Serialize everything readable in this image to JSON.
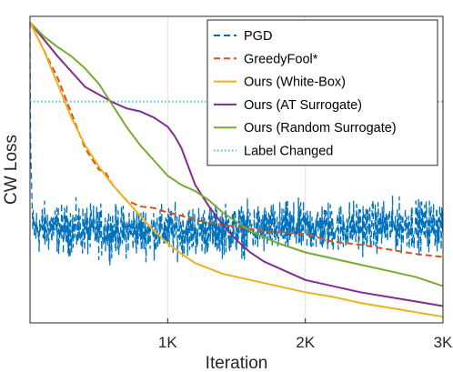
{
  "chart_data": {
    "type": "line",
    "title": "",
    "xlabel": "Iteration",
    "ylabel": "CW Loss",
    "xlim": [
      0,
      3000
    ],
    "ylim": [
      0,
      1
    ],
    "x_ticks": [
      {
        "value": 1000,
        "label": "1K"
      },
      {
        "value": 2000,
        "label": "2K"
      },
      {
        "value": 3000,
        "label": "3K"
      }
    ],
    "y_tick_labels_shown": false,
    "grid": "vertical",
    "legend_position": "top-right",
    "label_changed_level": 0.722,
    "series": [
      {
        "name": "PGD",
        "color": "#0072BD",
        "style": "dashed",
        "noisy": true,
        "noise_amplitude": 0.065,
        "x": [
          0,
          3,
          20,
          100,
          500,
          1000,
          2000,
          3000
        ],
        "y": [
          0.98,
          0.6,
          0.3,
          0.31,
          0.3,
          0.3,
          0.31,
          0.32
        ]
      },
      {
        "name": "GreedyFool*",
        "color": "#D95319",
        "style": "dashed",
        "x": [
          0,
          200,
          400,
          500,
          550,
          600,
          700,
          800,
          900,
          1000,
          1100,
          1200,
          1400,
          1700,
          2000,
          2200,
          2400,
          2600,
          2800,
          3000
        ],
        "y": [
          0.98,
          0.8,
          0.57,
          0.5,
          0.49,
          0.45,
          0.4,
          0.38,
          0.375,
          0.36,
          0.35,
          0.335,
          0.32,
          0.3,
          0.29,
          0.265,
          0.255,
          0.24,
          0.225,
          0.215
        ]
      },
      {
        "name": "Ours (White-Box)",
        "color": "#EDB120",
        "style": "solid",
        "x": [
          0,
          100,
          200,
          300,
          400,
          500,
          600,
          700,
          800,
          900,
          1000,
          1100,
          1200,
          1400,
          1600,
          1800,
          2000,
          2200,
          2400,
          2600,
          2800,
          3000
        ],
        "y": [
          0.98,
          0.89,
          0.78,
          0.67,
          0.58,
          0.51,
          0.45,
          0.4,
          0.35,
          0.3,
          0.26,
          0.225,
          0.195,
          0.16,
          0.14,
          0.12,
          0.1,
          0.085,
          0.065,
          0.05,
          0.035,
          0.02
        ]
      },
      {
        "name": "Ours (AT Surrogate)",
        "color": "#7E2F8E",
        "style": "solid",
        "x": [
          0,
          200,
          400,
          600,
          700,
          800,
          900,
          1000,
          1050,
          1100,
          1150,
          1200,
          1300,
          1400,
          1500,
          1600,
          1700,
          1800,
          1900,
          2000,
          2200,
          2400,
          2600,
          2800,
          3000
        ],
        "y": [
          0.98,
          0.87,
          0.77,
          0.72,
          0.7,
          0.69,
          0.67,
          0.64,
          0.61,
          0.57,
          0.51,
          0.45,
          0.38,
          0.32,
          0.27,
          0.23,
          0.2,
          0.18,
          0.16,
          0.14,
          0.12,
          0.1,
          0.085,
          0.07,
          0.055
        ]
      },
      {
        "name": "Ours (Random Surrogate)",
        "color": "#77AC30",
        "style": "solid",
        "x": [
          0,
          100,
          200,
          300,
          400,
          500,
          600,
          700,
          800,
          900,
          1000,
          1100,
          1200,
          1300,
          1400,
          1500,
          1600,
          1800,
          2000,
          2200,
          2400,
          2600,
          2800,
          3000
        ],
        "y": [
          0.98,
          0.935,
          0.9,
          0.87,
          0.83,
          0.78,
          0.71,
          0.64,
          0.58,
          0.53,
          0.48,
          0.45,
          0.43,
          0.4,
          0.36,
          0.33,
          0.3,
          0.26,
          0.23,
          0.21,
          0.19,
          0.17,
          0.15,
          0.12
        ]
      },
      {
        "name": "Label Changed",
        "color": "#4DBEEE",
        "style": "dotted",
        "x": [
          0,
          3000
        ],
        "y": [
          0.722,
          0.722
        ]
      }
    ]
  }
}
